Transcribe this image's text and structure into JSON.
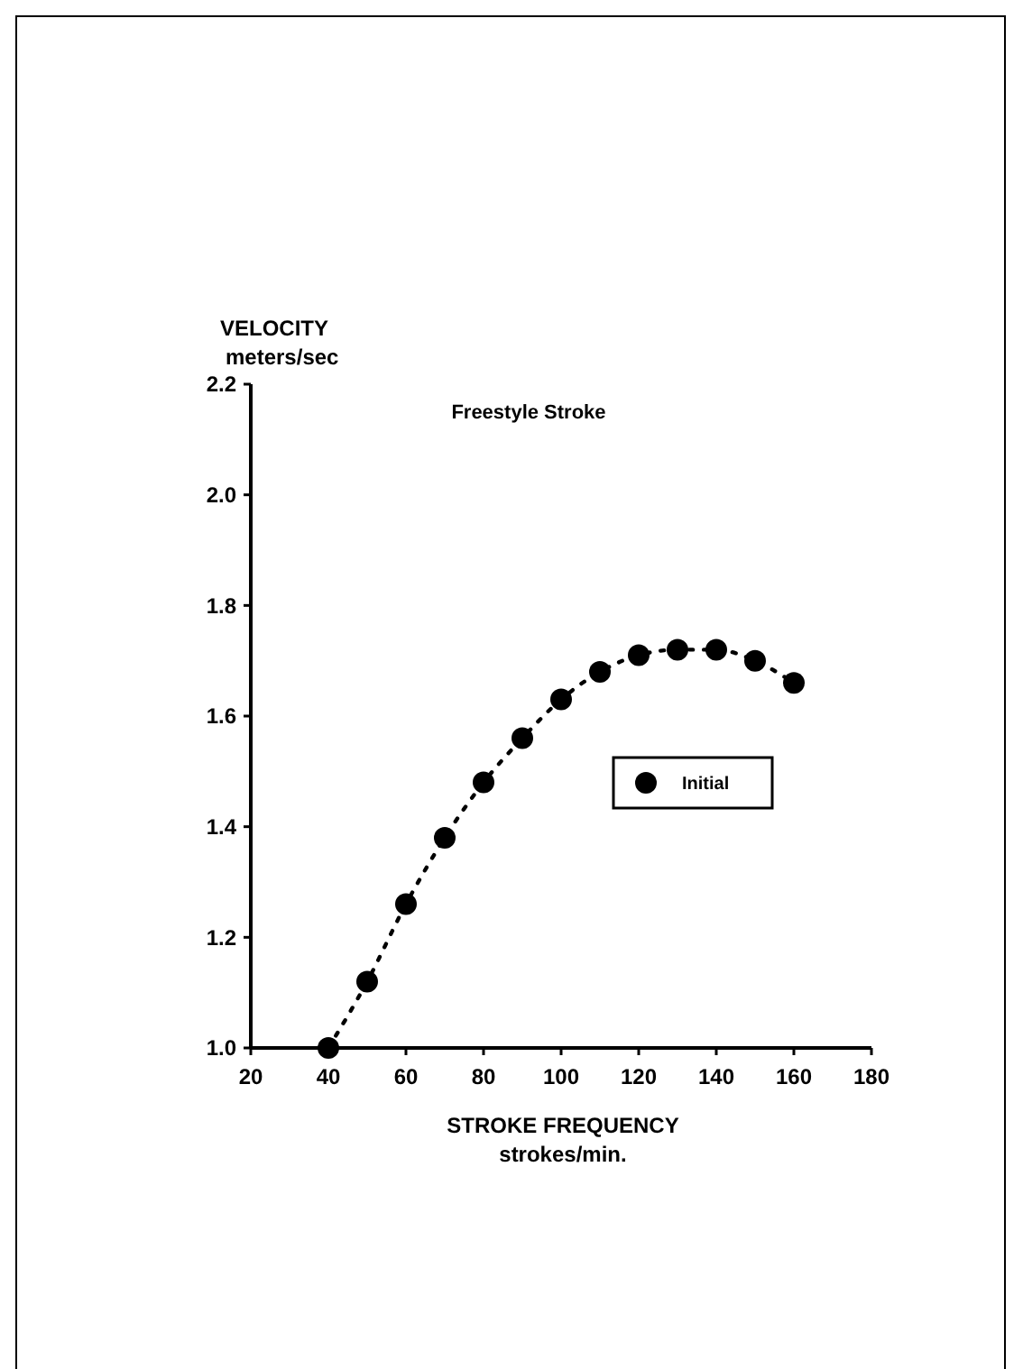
{
  "chart_data": {
    "type": "scatter",
    "title": "Freestyle Stroke",
    "xlabel": "STROKE FREQUENCY\nstrokes/min.",
    "ylabel": "VELOCITY\nmeters/sec",
    "x": [
      40,
      50,
      60,
      70,
      80,
      90,
      100,
      110,
      120,
      130,
      140,
      150,
      160
    ],
    "series": [
      {
        "type": "line",
        "color": "#000000",
        "line_style": "dotted",
        "values": [
          1.0,
          1.12,
          1.26,
          1.38,
          1.48,
          1.56,
          1.63,
          1.68,
          1.71,
          1.72,
          1.72,
          1.7,
          1.66
        ]
      },
      {
        "type": "scatter",
        "name": "Initial",
        "color": "#000000",
        "marker": "circle",
        "values": [
          1.0,
          1.12,
          1.26,
          1.38,
          1.48,
          1.56,
          1.63,
          1.68,
          1.71,
          1.72,
          1.72,
          1.7,
          1.66
        ]
      }
    ],
    "xlim": [
      20,
      180
    ],
    "xticks": [
      20,
      40,
      60,
      80,
      100,
      120,
      140,
      160,
      180
    ],
    "ylim": [
      1.0,
      2.2
    ],
    "yticks": [
      {
        "value": 1.0,
        "label": "1.0"
      },
      {
        "value": 1.2,
        "label": "1.2"
      },
      {
        "value": 1.4,
        "label": "1.4"
      },
      {
        "value": 1.6,
        "label": "1.6"
      },
      {
        "value": 1.8,
        "label": "1.8"
      },
      {
        "value": 2.0,
        "label": "2.0"
      },
      {
        "value": 2.2,
        "label": "2.2"
      }
    ],
    "grid": false,
    "legend": "right"
  }
}
